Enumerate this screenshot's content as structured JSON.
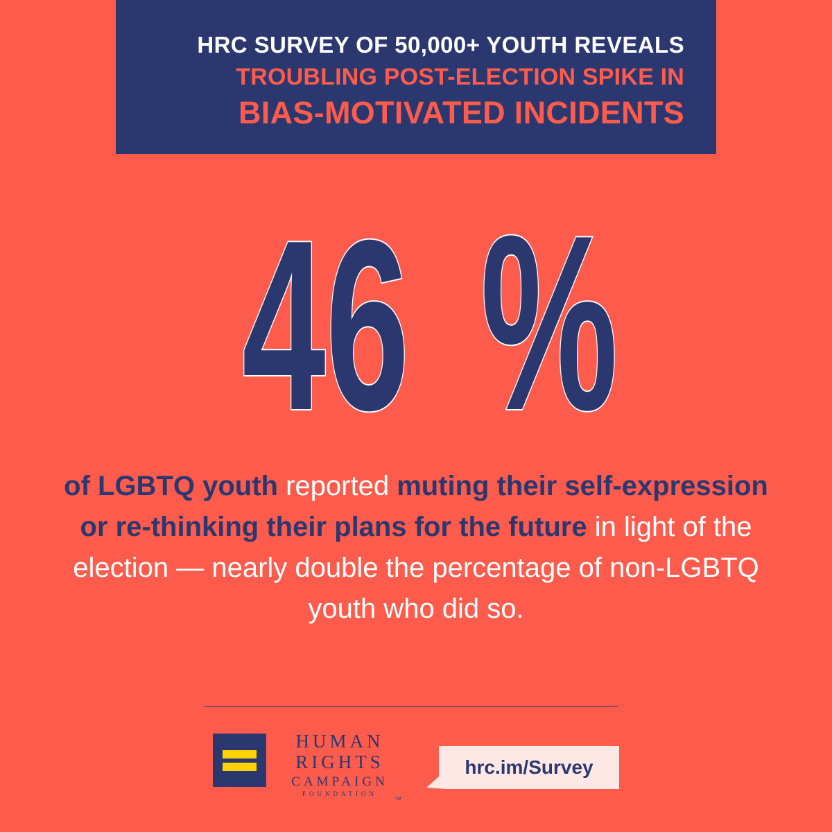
{
  "header": {
    "line1": "HRC SURVEY OF 50,000+ YOUTH REVEALS",
    "line2": "TROUBLING POST-ELECTION SPIKE IN",
    "line3": "BIAS-MOTIVATED INCIDENTS"
  },
  "stat": {
    "number": "46",
    "percent_sign": "%"
  },
  "description": {
    "part1": "of LGBTQ youth",
    "part2": " reported ",
    "part3": "muting their self-expression or re-thinking their plans for the future",
    "part4": " in light of the election — nearly double the percentage of non-LGBTQ youth who did so."
  },
  "footer": {
    "org_line1": "HUMAN",
    "org_line2": "RIGHTS",
    "org_line3": "CAMPAIGN",
    "org_line4": "FOUNDATION",
    "trademark": "TM",
    "url": "hrc.im/Survey"
  },
  "colors": {
    "background": "#fd5b4c",
    "navy": "#2b3870",
    "logo_bars": "#ffd200",
    "badge_bg": "#fde8e5"
  }
}
